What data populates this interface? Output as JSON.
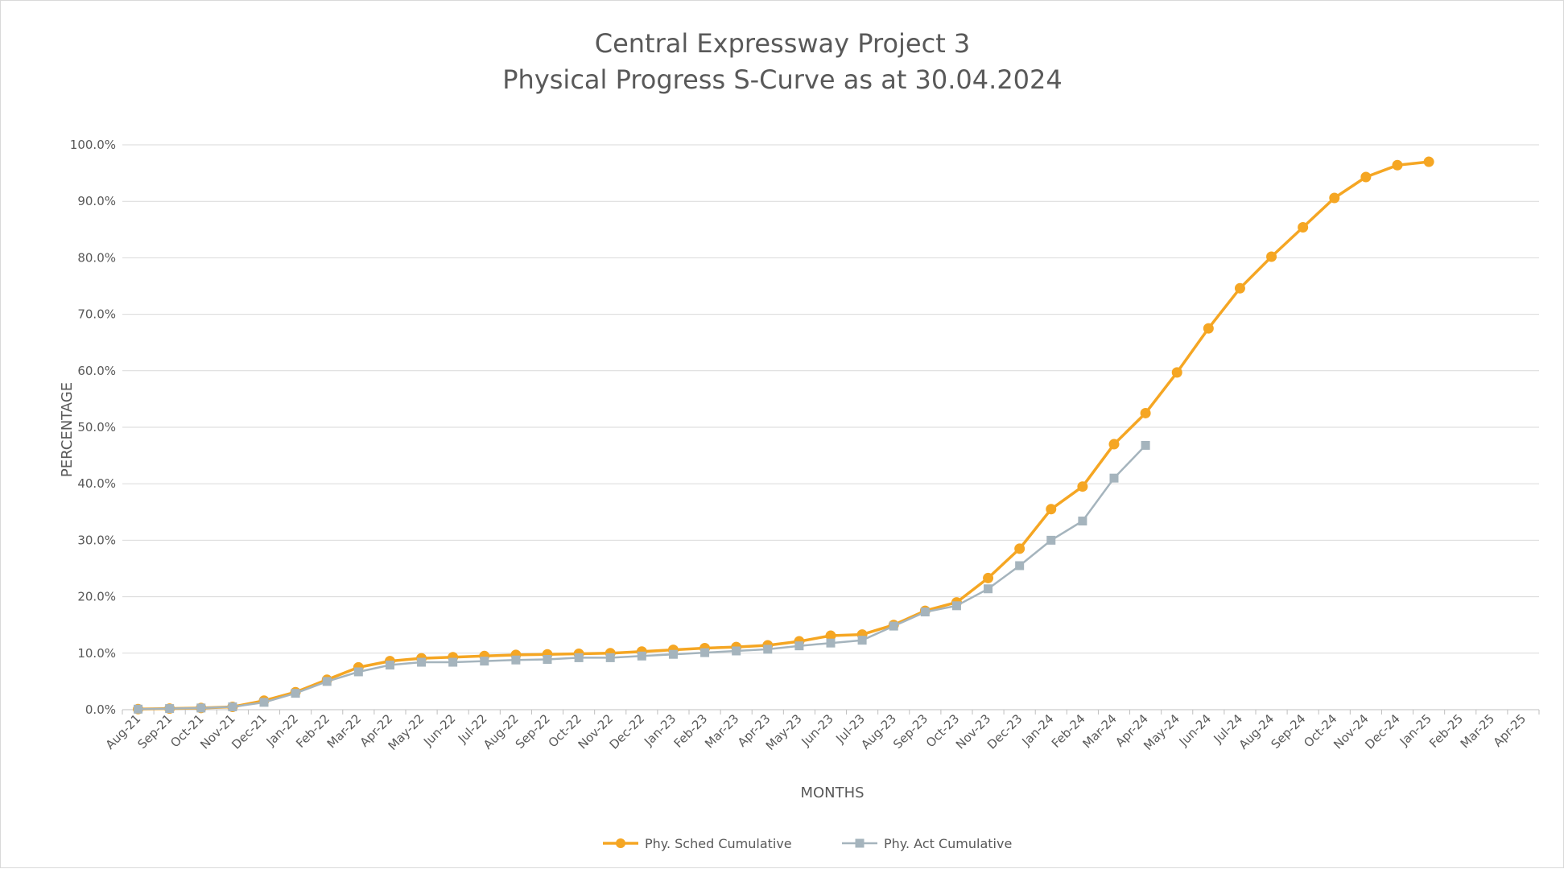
{
  "chart_data": {
    "type": "line",
    "title": "Central Expressway Project 3",
    "subtitle": "Physical Progress S-Curve as at 30.04.2024",
    "xlabel": "MONTHS",
    "ylabel": "PERCENTAGE",
    "ylim": [
      0,
      100
    ],
    "y_ticks": [
      "0.0%",
      "10.0%",
      "20.0%",
      "30.0%",
      "40.0%",
      "50.0%",
      "60.0%",
      "70.0%",
      "80.0%",
      "90.0%",
      "100.0%"
    ],
    "grid": true,
    "legend_position": "bottom",
    "categories": [
      "Aug-21",
      "Sep-21",
      "Oct-21",
      "Nov-21",
      "Dec-21",
      "Jan-22",
      "Feb-22",
      "Mar-22",
      "Apr-22",
      "May-22",
      "Jun-22",
      "Jul-22",
      "Aug-22",
      "Sep-22",
      "Oct-22",
      "Nov-22",
      "Dec-22",
      "Jan-23",
      "Feb-23",
      "Mar-23",
      "Apr-23",
      "May-23",
      "Jun-23",
      "Jul-23",
      "Aug-23",
      "Sep-23",
      "Oct-23",
      "Nov-23",
      "Dec-23",
      "Jan-24",
      "Feb-24",
      "Mar-24",
      "Apr-24",
      "May-24",
      "Jun-24",
      "Jul-24",
      "Aug-24",
      "Sep-24",
      "Oct-24",
      "Nov-24",
      "Dec-24",
      "Jan-25",
      "Feb-25",
      "Mar-25",
      "Apr-25"
    ],
    "series": [
      {
        "name": "Phy. Sched Cumulative",
        "color": "#f5a623",
        "marker": "circle",
        "values": [
          0.1,
          0.2,
          0.3,
          0.5,
          1.6,
          3.1,
          5.3,
          7.5,
          8.6,
          9.1,
          9.3,
          9.5,
          9.7,
          9.8,
          9.9,
          10.0,
          10.3,
          10.6,
          10.9,
          11.1,
          11.4,
          12.1,
          13.1,
          13.3,
          15.0,
          17.5,
          19.0,
          23.3,
          28.5,
          35.5,
          39.5,
          47.0,
          52.5,
          59.7,
          67.5,
          74.6,
          80.2,
          85.4,
          90.6,
          94.3,
          96.4,
          97.0,
          null,
          null,
          null
        ]
      },
      {
        "name": "Phy. Act Cumulative",
        "color": "#a5b4bd",
        "marker": "square",
        "values": [
          0.1,
          0.2,
          0.3,
          0.5,
          1.3,
          2.9,
          5.0,
          6.7,
          7.9,
          8.4,
          8.4,
          8.6,
          8.8,
          8.9,
          9.2,
          9.2,
          9.5,
          9.8,
          10.1,
          10.4,
          10.7,
          11.3,
          11.8,
          12.3,
          14.8,
          17.3,
          18.4,
          21.4,
          25.5,
          30.0,
          33.4,
          41.0,
          46.8,
          null,
          null,
          null,
          null,
          null,
          null,
          null,
          null,
          null,
          null,
          null,
          null
        ]
      }
    ]
  }
}
